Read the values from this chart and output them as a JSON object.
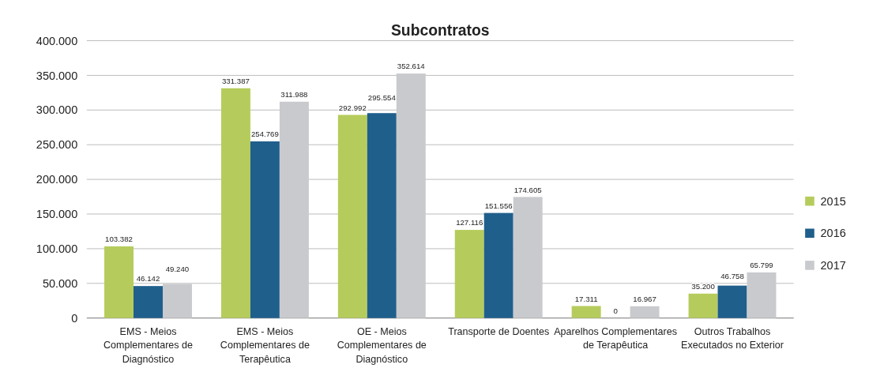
{
  "chart_data": {
    "type": "bar",
    "title": "Subcontratos",
    "categories": [
      "EMS - Meios Complementares de Diagnóstico",
      "EMS - Meios Complementares de Terapêutica",
      "OE - Meios Complementares de Diagnóstico",
      "Transporte de Doentes",
      "Aparelhos Complementares de Terapêutica",
      "Outros Trabalhos Executados no Exterior"
    ],
    "series": [
      {
        "name": "2015",
        "color": "#b5cc5c",
        "values": [
          103382,
          331387,
          292992,
          127116,
          17311,
          35200
        ],
        "value_labels": [
          "103.382",
          "331.387",
          "292.992",
          "127.116",
          "17.311",
          "35.200"
        ]
      },
      {
        "name": "2016",
        "color": "#1f5f8c",
        "values": [
          46142,
          254769,
          295554,
          151556,
          0,
          46758
        ],
        "value_labels": [
          "46.142",
          "254.769",
          "295.554",
          "151.556",
          "0",
          "46.758"
        ]
      },
      {
        "name": "2017",
        "color": "#c9cacd",
        "values": [
          49240,
          311988,
          352614,
          174605,
          16967,
          65799
        ],
        "value_labels": [
          "49.240",
          "311.988",
          "352.614",
          "174.605",
          "16.967",
          "65.799"
        ]
      }
    ],
    "ylim": [
      0,
      400000
    ],
    "yticks": [
      {
        "value": 0,
        "label": "0"
      },
      {
        "value": 50000,
        "label": "50.000"
      },
      {
        "value": 100000,
        "label": "100.000"
      },
      {
        "value": 150000,
        "label": "150.000"
      },
      {
        "value": 200000,
        "label": "200.000"
      },
      {
        "value": 250000,
        "label": "250.000"
      },
      {
        "value": 300000,
        "label": "300.000"
      },
      {
        "value": 350000,
        "label": "350.000"
      },
      {
        "value": 400000,
        "label": "400.000"
      }
    ],
    "grid": "y",
    "legend": "right"
  }
}
